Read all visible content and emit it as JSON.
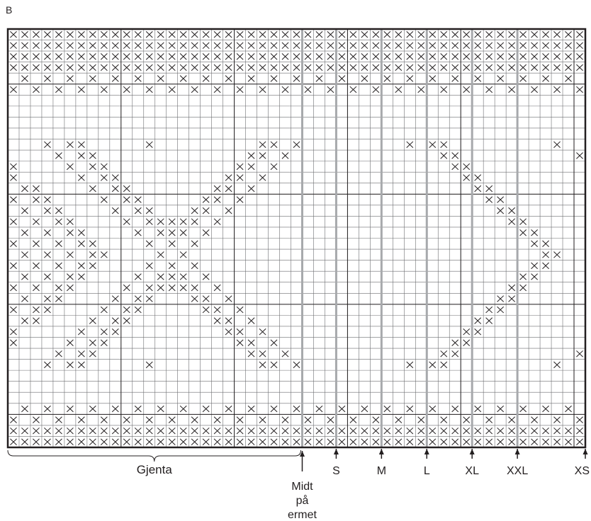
{
  "diagram": {
    "title": "B",
    "grid": {
      "columns": 51,
      "rows": 38
    },
    "repeat_label": "Gjenta",
    "center_label": [
      "Midt",
      "på",
      "ermet"
    ],
    "size_markers": [
      {
        "label": "S",
        "column_boundary": 29
      },
      {
        "label": "M",
        "column_boundary": 33
      },
      {
        "label": "L",
        "column_boundary": 37
      },
      {
        "label": "XL",
        "column_boundary": 41
      },
      {
        "label": "XXL",
        "column_boundary": 45
      },
      {
        "label": "XS",
        "column_boundary": 51
      }
    ],
    "center_column_boundary": 26,
    "colors": {
      "line": "#231f20",
      "grid": "#6d6e71",
      "size_line": "#a7a9ac",
      "background": "#ffffff"
    },
    "rows": [
      "XXXXXXXXXXXXXXXXXXXXXXXXXXXXXXXXXXXXXXXXXXXXXXXXXXX",
      "XXXXXXXXXXXXXXXXXXXXXXXXXXXXXXXXXXXXXXXXXXXXXXXXXXX",
      "XXXXXXXXXXXXXXXXXXXXXXXXXXXXXXXXXXXXXXXXXXXXXXXXXXX",
      "XXXXXXXXXXXXXXXXXXXXXXXXXXXXXXXXXXXXXXXXXXXXXXXXXXX",
      ".X.X.X.X.X.X.X.X.X.X.X.X.X.X.X.X.X.X.X.X.X.X.X.X.X.",
      "X.X.X.X.X.X.X.X.X.X.X.X.X.X.X.X.X.X.X.X.X.X.X.X.X.X",
      "...................................................",
      "...................................................",
      "...................................................",
      "...................................................",
      "...X.XX.....X.........XX.X.........X.XX.........X..",
      "....X.XX.............XX.X.............XX..........X.",
      "X....X.XX...........XX.X...............XX..........",
      "X.....X.XX.........XX.X.................XX.........",
      ".XX....X.XX.......XX.X...................XX........",
      "X.XX....X.XX.....XX.X.....................XX.......",
      ".X.XX....X.XX...XX.X.......................XX......",
      "X.X.XX....X.XXXXX.X.........................XX.....",
      ".X.X.XX....X.XXX.X...........................XX....",
      "X.X.X.XX....X.X.X.............................XX...",
      ".X.X.X.XX....X.X...............................XX..",
      "X.X.X.XX....X.X.X.............................XX...",
      ".X.X.XX....X.XXX.X...........................XX....",
      "X.X.XX....X.XXXXX.X.........................XX.....",
      ".X.XX....X.XX...XX.X.......................XX......",
      "X.XX....X.XX.....XX.X.....................XX.......",
      ".XX....X.XX.......XX.X...................XX........",
      "X.....X.XX.........XX.X.................XX.........",
      "X....X.XX...........XX.X...............XX..........",
      "....X.XX.............XX.X.............XX..........X.",
      "...X.XX.....X.........XX.X.........X.XX.........X..",
      "...................................................",
      "...................................................",
      "...................................................",
      ".X.X.X.X.X.X.X.X.X.X.X.X.X.X.X.X.X.X.X.X.X.X.X.X.X.",
      "X.X.X.X.X.X.X.X.X.X.X.X.X.X.X.X.X.X.X.X.X.X.X.X.X.X",
      "XXXXXXXXXXXXXXXXXXXXXXXXXXXXXXXXXXXXXXXXXXXXXXXXXXX",
      "XXXXXXXXXXXXXXXXXXXXXXXXXXXXXXXXXXXXXXXXXXXXXXXXXXX"
    ]
  }
}
